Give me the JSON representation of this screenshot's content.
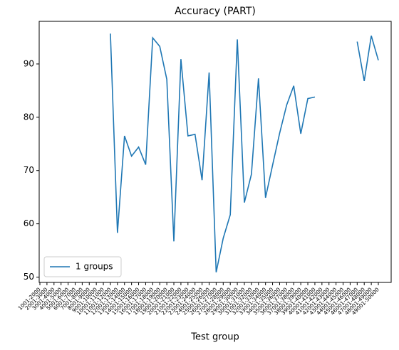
{
  "chart_data": {
    "type": "line",
    "title": "Accuracy (PART)",
    "x_label": "Test group",
    "categories": [
      "1001-2000",
      "2001-3000",
      "3001-4000",
      "4001-5000",
      "5001-6000",
      "6001-7000",
      "7001-8000",
      "8001-9000",
      "9001-10000",
      "10001-11000",
      "11001-12000",
      "12001-13000",
      "13001-14000",
      "14001-15000",
      "15001-16000",
      "16001-17000",
      "17001-18000",
      "18001-19000",
      "19001-20000",
      "20001-21000",
      "21001-22000",
      "22001-23000",
      "23001-24000",
      "24001-25000",
      "25001-26000",
      "26001-27000",
      "27001-28000",
      "28001-29000",
      "29001-30000",
      "30001-31000",
      "31001-32000",
      "32001-33000",
      "33001-34000",
      "34001-35000",
      "35001-36000",
      "36001-37000",
      "37001-38000",
      "38001-39000",
      "39001-40000",
      "40001-41000",
      "41001-42000",
      "42001-43000",
      "43001-44000",
      "44001-45000",
      "45001-46000",
      "46001-47000",
      "47001-48000",
      "48001-49000",
      "49001-50000"
    ],
    "series": [
      {
        "name": "1 groups",
        "color": "#1f77b4",
        "values": [
          null,
          null,
          null,
          null,
          null,
          null,
          null,
          null,
          null,
          null,
          95.7,
          58.3,
          76.5,
          72.7,
          74.4,
          71.1,
          94.9,
          93.3,
          87.1,
          56.7,
          90.9,
          76.5,
          76.8,
          68.2,
          88.4,
          50.9,
          57.3,
          61.7,
          94.6,
          64.0,
          69.3,
          87.3,
          64.9,
          71.0,
          77.0,
          82.3,
          85.9,
          76.9,
          83.5,
          83.8,
          null,
          null,
          null,
          null,
          null,
          94.2,
          86.8,
          95.3,
          90.7
        ]
      }
    ],
    "ylim": [
      49,
      98
    ],
    "yticks": [
      50,
      60,
      70,
      80,
      90
    ],
    "legend": "lower left"
  }
}
